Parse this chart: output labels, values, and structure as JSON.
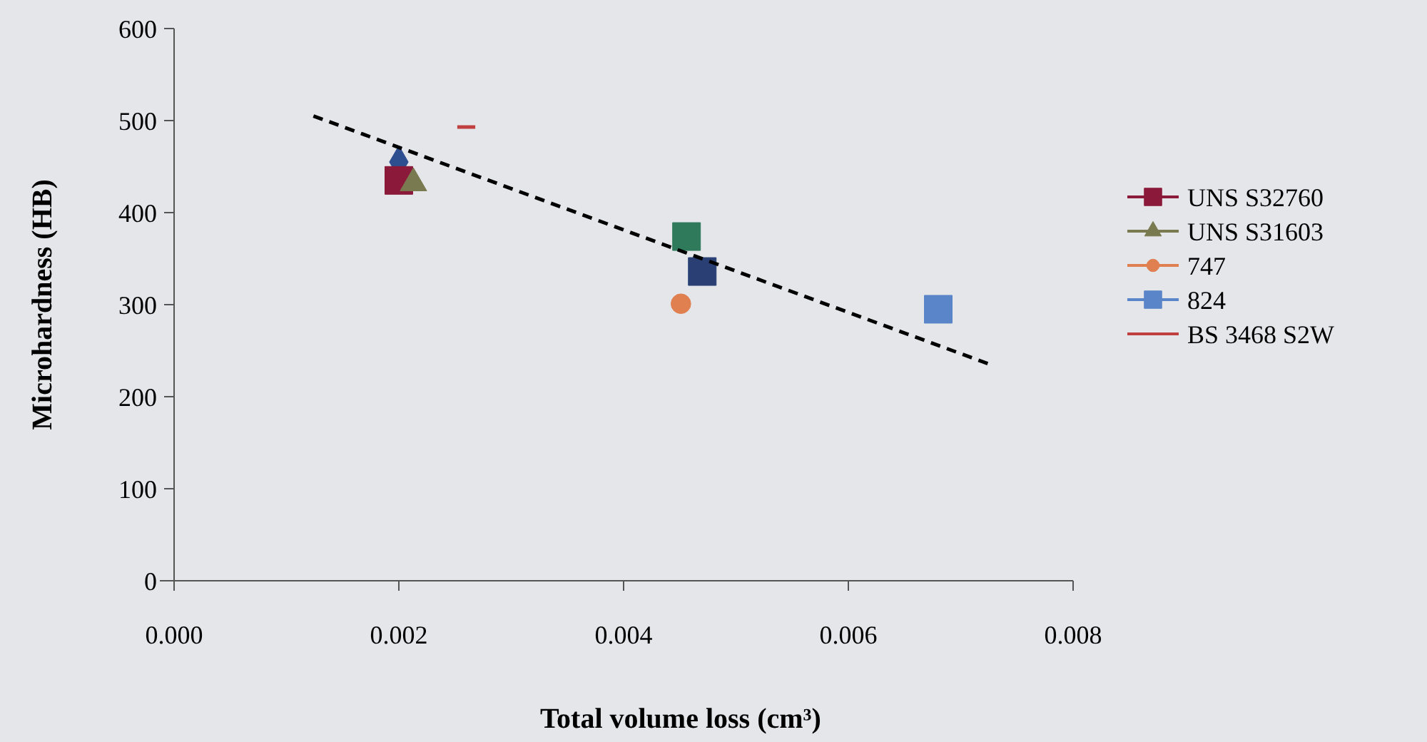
{
  "chart_data": {
    "type": "scatter",
    "xlabel": "Total volume loss (cm³)",
    "ylabel": "Microhardness (HB)",
    "xlim": [
      0,
      0.008
    ],
    "xticks": [
      {
        "value": 0,
        "label": "0.000"
      },
      {
        "value": 0.002,
        "label": "0.002"
      },
      {
        "value": 0.004,
        "label": "0.004"
      },
      {
        "value": 0.006,
        "label": "0.006"
      },
      {
        "value": 0.008,
        "label": "0.008"
      }
    ],
    "ylim": [
      0,
      600
    ],
    "yticks": [
      0,
      100,
      200,
      300,
      400,
      500,
      600
    ],
    "grid": false,
    "legend": "right",
    "series": [
      {
        "color": "#2e4f8f",
        "marker": "diamond",
        "x": [
          0.002
        ],
        "values": [
          455
        ]
      },
      {
        "name": "UNS S32760",
        "color": "#8b1a3a",
        "marker": "square",
        "x": [
          0.002
        ],
        "values": [
          435
        ]
      },
      {
        "name": "UNS S31603",
        "color": "#7a7a50",
        "marker": "triangle",
        "x": [
          0.00213
        ],
        "values": [
          432
        ]
      },
      {
        "color": "#2a4075",
        "marker": "square",
        "x": [
          0.0047
        ],
        "values": [
          336
        ]
      },
      {
        "color": "#2e7a5a",
        "marker": "square",
        "x": [
          0.00456
        ],
        "values": [
          374
        ]
      },
      {
        "name": "747",
        "color": "#e08050",
        "marker": "circle",
        "x": [
          0.00451
        ],
        "values": [
          301
        ]
      },
      {
        "name": "824",
        "color": "#5a85c8",
        "marker": "square",
        "x": [
          0.0068
        ],
        "values": [
          295
        ]
      },
      {
        "name": "BS 3468 S2W",
        "type": "line",
        "color": "#c04040",
        "marker": "none",
        "x": [
          0.00252,
          0.00268
        ],
        "values": [
          493,
          493
        ]
      },
      {
        "type": "line",
        "color": "#000000",
        "marker": "none",
        "line_style": "dashed",
        "x": [
          0.00124,
          0.00724
        ],
        "values": [
          505,
          236
        ]
      }
    ]
  }
}
